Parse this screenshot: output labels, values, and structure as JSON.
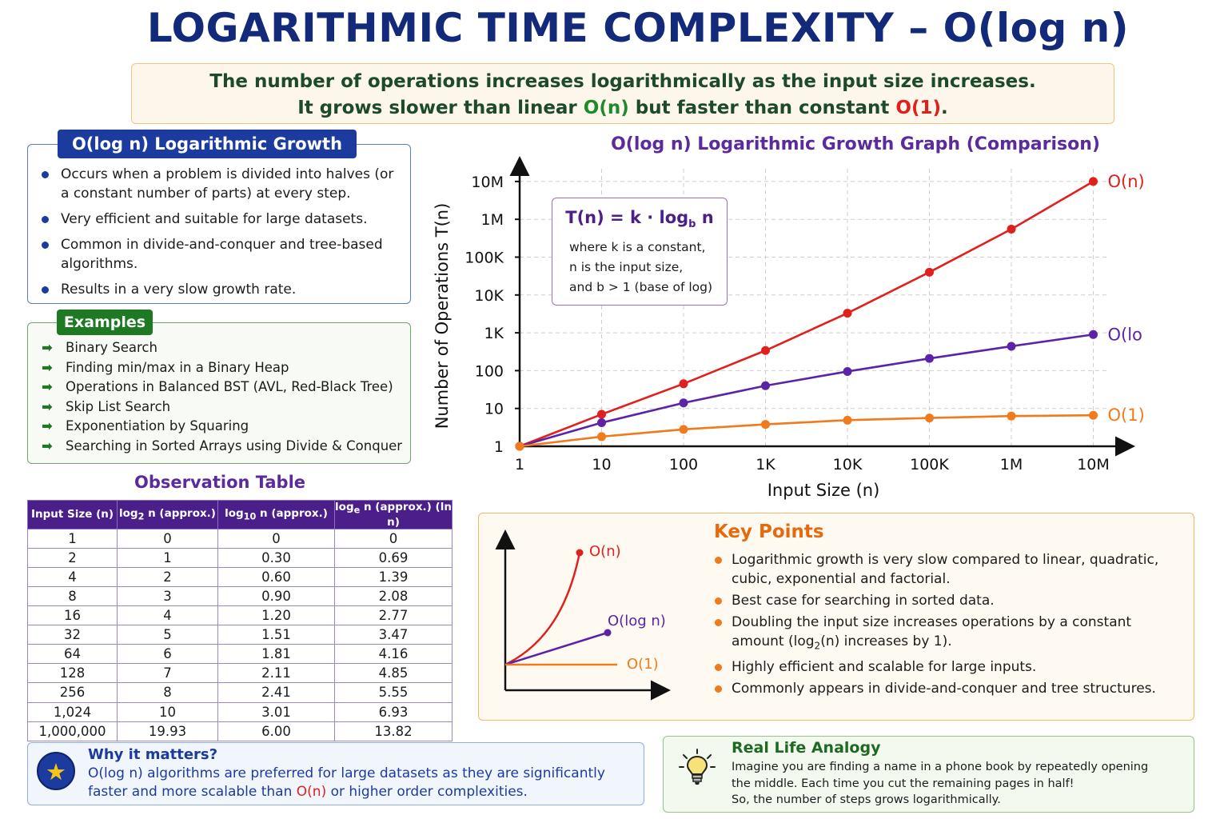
{
  "title": "LOGARITHMIC TIME COMPLEXITY – O(log n)",
  "banner": {
    "line1": "The number of operations increases logarithmically as the input size increases.",
    "line2_prefix": "It grows slower than linear ",
    "linear": "O(n)",
    "line2_middle": " but faster than constant ",
    "constant": "O(1)",
    "line2_suffix": "."
  },
  "growth": {
    "title": "O(log n) Logarithmic Growth",
    "bullets": [
      "Occurs when a problem is divided into halves (or a constant number of parts) at every step.",
      "Very efficient and suitable for large datasets.",
      "Common in divide-and-conquer and tree-based algorithms.",
      "Results in a very slow growth rate."
    ]
  },
  "examples": {
    "title": "Examples",
    "arrow": "➡",
    "items": [
      "Binary Search",
      "Finding min/max in a Binary Heap",
      "Operations in Balanced BST (AVL, Red-Black Tree)",
      "Skip List Search",
      "Exponentiation by Squaring",
      "Searching in Sorted Arrays using Divide & Conquer"
    ]
  },
  "observation": {
    "title": "Observation Table",
    "headers": {
      "input": "Input Size (n)",
      "log2_prefix": "log",
      "log2_sub": "2",
      "log2_suffix": " n (approx.)",
      "log10_prefix": "log",
      "log10_sub": "10",
      "log10_suffix": " n (approx.)",
      "ln_prefix": "log",
      "ln_sub": "e",
      "ln_suffix": " n (approx.) (ln n)"
    },
    "rows": [
      [
        "1",
        "0",
        "0",
        "0"
      ],
      [
        "2",
        "1",
        "0.30",
        "0.69"
      ],
      [
        "4",
        "2",
        "0.60",
        "1.39"
      ],
      [
        "8",
        "3",
        "0.90",
        "2.08"
      ],
      [
        "16",
        "4",
        "1.20",
        "2.77"
      ],
      [
        "32",
        "5",
        "1.51",
        "3.47"
      ],
      [
        "64",
        "6",
        "1.81",
        "4.16"
      ],
      [
        "128",
        "7",
        "2.11",
        "4.85"
      ],
      [
        "256",
        "8",
        "2.41",
        "5.55"
      ],
      [
        "1,024",
        "10",
        "3.01",
        "6.93"
      ],
      [
        "1,000,000",
        "19.93",
        "6.00",
        "13.82"
      ]
    ]
  },
  "why": {
    "icon": "★",
    "title": "Why it matters?",
    "text_prefix": "O(log n) algorithms are preferred for large datasets as they are significantly faster and more scalable than ",
    "highlight": "O(n)",
    "text_suffix": " or higher order complexities."
  },
  "chart": {
    "title": "O(log n) Logarithmic Growth Graph (Comparison)",
    "formula": {
      "lhs": "T(n) = k · log",
      "sub": "b",
      "rhs": " n",
      "notes": [
        "where k is a constant,",
        "n is the input size,",
        "and b > 1 (base of log)"
      ]
    }
  },
  "chart_data": {
    "type": "line",
    "title": "O(log n) Logarithmic Growth Graph (Comparison)",
    "xlabel": "Input Size (n)",
    "ylabel": "Number of Operations T(n)",
    "x_scale": "log",
    "y_scale": "log",
    "x_ticks": [
      "1",
      "10",
      "100",
      "1K",
      "10K",
      "100K",
      "1M",
      "10M"
    ],
    "y_ticks": [
      "1",
      "10",
      "100",
      "1K",
      "10K",
      "100K",
      "1M",
      "10M"
    ],
    "grid": true,
    "x": [
      1,
      10,
      100,
      1000,
      10000,
      100000,
      1000000,
      10000000
    ],
    "series": [
      {
        "name": "O(n)",
        "color": "#e0201c",
        "values": [
          1,
          7,
          45,
          340,
          3300,
          40000,
          550000,
          10000000
        ]
      },
      {
        "name": "O(log n)",
        "color": "#5b23a6",
        "values": [
          1,
          4.2,
          14,
          40,
          95,
          210,
          440,
          900
        ]
      },
      {
        "name": "O(1)",
        "color": "#f07a1c",
        "values": [
          1,
          1.8,
          2.8,
          3.8,
          4.9,
          5.6,
          6.3,
          6.6
        ]
      }
    ]
  },
  "key_points": {
    "title": "Key Points",
    "mini_labels": {
      "linear": "O(n)",
      "log": "O(log n)",
      "constant": "O(1)"
    },
    "items": [
      "Logarithmic growth is very slow compared to linear, quadratic, cubic, exponential and factorial.",
      "Best case for searching in sorted data."
    ],
    "item3_prefix": "Doubling the input size increases operations by a constant amount (log",
    "item3_sub": "2",
    "item3_suffix": "(n) increases by 1).",
    "items_after": [
      "Highly efficient and scalable for large inputs.",
      "Commonly appears in divide-and-conquer and tree structures."
    ]
  },
  "analogy": {
    "title": "Real Life Analogy",
    "lines": [
      "Imagine you are finding a name in a phone book by repeatedly opening",
      "the middle. Each time you cut the remaining pages in half!",
      "So, the number of steps grows logarithmically."
    ]
  }
}
